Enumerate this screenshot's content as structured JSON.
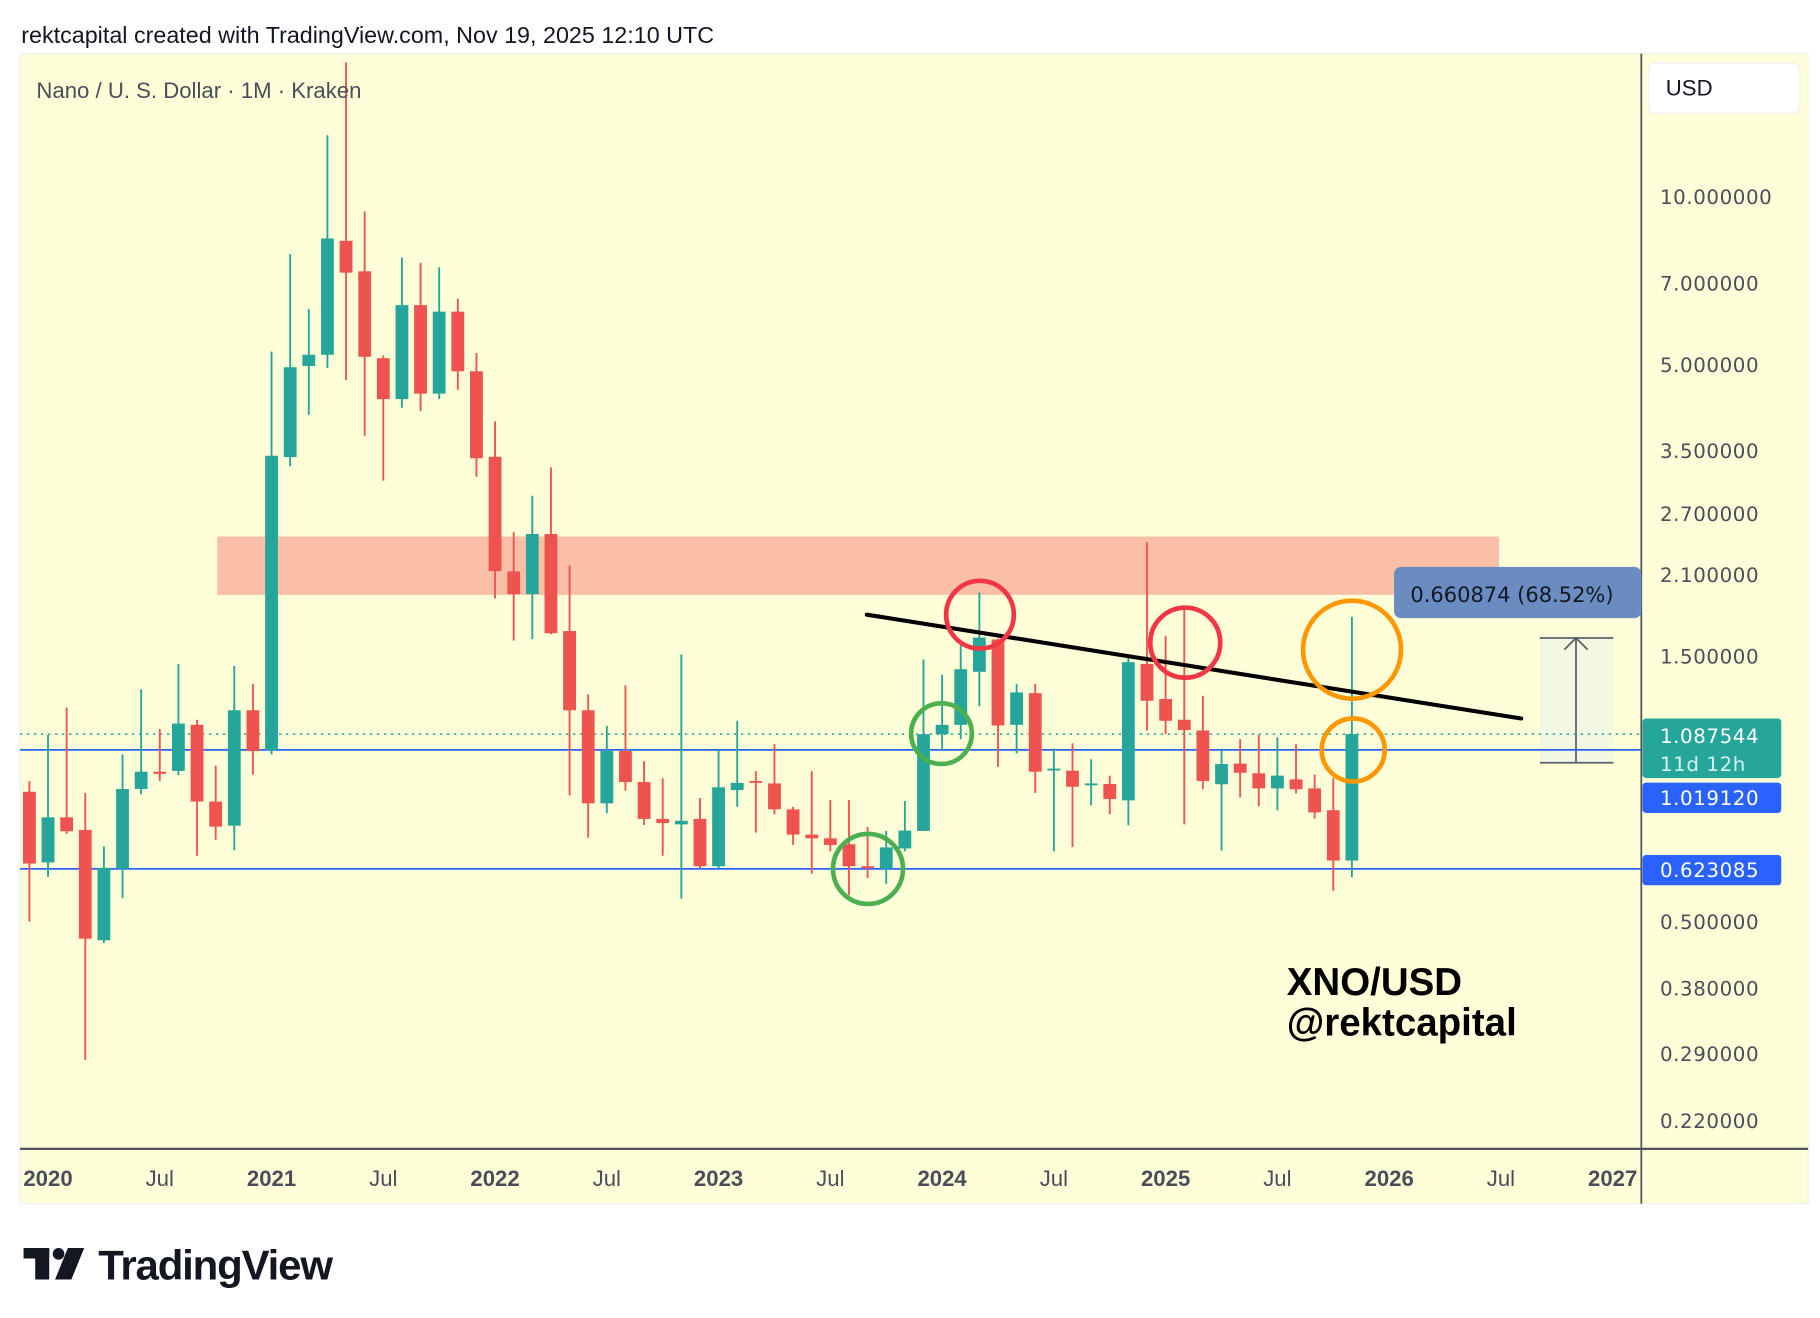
{
  "header": {
    "attribution": "rektcapital created with TradingView.com, Nov 19, 2025 12:10 UTC"
  },
  "chart": {
    "symbol_title": "Nano / U. S. Dollar · 1M · Kraken",
    "currency_button": "USD",
    "watermark_line1": "XNO/USD",
    "watermark_line2": "@rektcapital",
    "current_price_label": "1.087544",
    "countdown_label": "11d 12h",
    "level_high_label": "1.019120",
    "level_low_label": "0.623085",
    "measure_label": "0.660874 (68.52%)",
    "colors": {
      "up": "#26a69a",
      "down": "#ef5350",
      "level": "#2962ff",
      "background": "#fefed8",
      "zone": "#fbbfa8",
      "circle_red": "#f23645",
      "circle_green": "#4caf50",
      "circle_orange": "#ff9800"
    }
  },
  "footer": {
    "brand": "TradingView"
  },
  "chart_data": {
    "type": "candlestick",
    "title": "Nano / U. S. Dollar · 1M · Kraken",
    "timeframe": "1M",
    "scale": "log",
    "first_month": "2019-12",
    "ylim": [
      0.2,
      14
    ],
    "levels": [
      1.01912,
      0.623085
    ],
    "current_price": 1.087544,
    "resistance_zone": [
      1.93,
      2.46
    ],
    "measure": {
      "from": 0.9645,
      "to": 1.6254,
      "change": 0.660874,
      "percent": 68.52
    },
    "y_ticks": [
      {
        "value": 10,
        "label": "10.000000"
      },
      {
        "value": 7,
        "label": "7.000000"
      },
      {
        "value": 5,
        "label": "5.000000"
      },
      {
        "value": 3.5,
        "label": "3.500000"
      },
      {
        "value": 2.7,
        "label": "2.700000"
      },
      {
        "value": 2.1,
        "label": "2.100000"
      },
      {
        "value": 1.5,
        "label": "1.500000"
      },
      {
        "value": 0.5,
        "label": "0.500000"
      },
      {
        "value": 0.38,
        "label": "0.380000"
      },
      {
        "value": 0.29,
        "label": "0.290000"
      },
      {
        "value": 0.22,
        "label": "0.220000"
      }
    ],
    "x_ticks": [
      {
        "date": "2020-01",
        "label": "2020",
        "year": true
      },
      {
        "date": "2020-07",
        "label": "Jul",
        "year": false
      },
      {
        "date": "2021-01",
        "label": "2021",
        "year": true
      },
      {
        "date": "2021-07",
        "label": "Jul",
        "year": false
      },
      {
        "date": "2022-01",
        "label": "2022",
        "year": true
      },
      {
        "date": "2022-07",
        "label": "Jul",
        "year": false
      },
      {
        "date": "2023-01",
        "label": "2023",
        "year": true
      },
      {
        "date": "2023-07",
        "label": "Jul",
        "year": false
      },
      {
        "date": "2024-01",
        "label": "2024",
        "year": true
      },
      {
        "date": "2024-07",
        "label": "Jul",
        "year": false
      },
      {
        "date": "2025-01",
        "label": "2025",
        "year": true
      },
      {
        "date": "2025-07",
        "label": "Jul",
        "year": false
      },
      {
        "date": "2026-01",
        "label": "2026",
        "year": true
      },
      {
        "date": "2026-07",
        "label": "Jul",
        "year": false
      },
      {
        "date": "2027-01",
        "label": "2027",
        "year": true
      }
    ],
    "ohlc_columns": [
      "open",
      "high",
      "low",
      "close"
    ],
    "ohlc": [
      [
        0.857,
        0.896,
        0.501,
        0.637
      ],
      [
        0.64,
        1.084,
        0.603,
        0.771
      ],
      [
        0.771,
        1.213,
        0.72,
        0.728
      ],
      [
        0.732,
        0.853,
        0.283,
        0.467
      ],
      [
        0.464,
        0.684,
        0.459,
        0.626
      ],
      [
        0.623,
        1.0,
        0.552,
        0.867
      ],
      [
        0.867,
        1.309,
        0.848,
        0.931
      ],
      [
        0.931,
        1.111,
        0.896,
        0.923
      ],
      [
        0.934,
        1.453,
        0.918,
        1.136
      ],
      [
        1.13,
        1.154,
        0.658,
        0.823
      ],
      [
        0.823,
        0.954,
        0.703,
        0.742
      ],
      [
        0.745,
        1.441,
        0.673,
        1.2
      ],
      [
        1.2,
        1.339,
        0.92,
        1.014
      ],
      [
        1.018,
        5.285,
        1.0,
        3.435
      ],
      [
        3.416,
        7.9,
        3.287,
        4.952
      ],
      [
        4.977,
        6.295,
        4.067,
        5.213
      ],
      [
        5.213,
        12.91,
        4.937,
        8.43
      ],
      [
        8.35,
        17.45,
        4.7,
        7.32
      ],
      [
        7.36,
        9.43,
        3.73,
        5.17
      ],
      [
        5.14,
        5.2,
        3.1,
        4.34
      ],
      [
        4.34,
        7.79,
        4.19,
        6.4
      ],
      [
        6.4,
        7.62,
        4.13,
        4.44
      ],
      [
        4.44,
        7.48,
        4.34,
        6.23
      ],
      [
        6.23,
        6.57,
        4.51,
        4.87
      ],
      [
        4.87,
        5.25,
        3.15,
        3.4
      ],
      [
        3.42,
        3.96,
        1.904,
        2.133
      ],
      [
        2.13,
        2.504,
        1.6,
        1.939
      ],
      [
        1.939,
        2.911,
        1.61,
        2.486
      ],
      [
        2.486,
        3.274,
        1.643,
        1.65
      ],
      [
        1.665,
        2.184,
        0.844,
        1.2
      ],
      [
        1.2,
        1.281,
        0.709,
        0.817
      ],
      [
        0.817,
        1.125,
        0.784,
        1.014
      ],
      [
        1.014,
        1.33,
        0.861,
        0.892
      ],
      [
        0.892,
        0.972,
        0.747,
        0.766
      ],
      [
        0.766,
        0.906,
        0.658,
        0.753
      ],
      [
        0.749,
        1.512,
        0.551,
        0.76
      ],
      [
        0.766,
        0.835,
        0.624,
        0.63
      ],
      [
        0.63,
        1.019,
        0.624,
        0.873
      ],
      [
        0.863,
        1.149,
        0.805,
        0.889
      ],
      [
        0.896,
        0.933,
        0.724,
        0.891
      ],
      [
        0.887,
        1.043,
        0.781,
        0.797
      ],
      [
        0.797,
        0.805,
        0.688,
        0.718
      ],
      [
        0.718,
        0.933,
        0.611,
        0.707
      ],
      [
        0.707,
        0.828,
        0.67,
        0.688
      ],
      [
        0.69,
        0.828,
        0.559,
        0.63
      ],
      [
        0.63,
        0.741,
        0.6,
        0.625
      ],
      [
        0.624,
        0.729,
        0.586,
        0.681
      ],
      [
        0.678,
        0.825,
        0.67,
        0.73
      ],
      [
        0.729,
        1.48,
        0.729,
        1.087
      ],
      [
        1.087,
        1.39,
        1.018,
        1.13
      ],
      [
        1.13,
        1.569,
        1.065,
        1.422
      ],
      [
        1.407,
        1.952,
        1.22,
        1.62
      ],
      [
        1.608,
        1.615,
        0.95,
        1.127
      ],
      [
        1.13,
        1.338,
        1.004,
        1.292
      ],
      [
        1.288,
        1.338,
        0.853,
        0.931
      ],
      [
        0.937,
        1.024,
        0.67,
        0.943
      ],
      [
        0.935,
        1.047,
        0.682,
        0.875
      ],
      [
        0.883,
        0.98,
        0.81,
        0.887
      ],
      [
        0.885,
        0.916,
        0.781,
        0.832
      ],
      [
        0.827,
        1.512,
        0.746,
        1.464
      ],
      [
        1.453,
        2.403,
        1.104,
        1.248
      ],
      [
        1.257,
        1.633,
        1.088,
        1.149
      ],
      [
        1.154,
        1.846,
        0.749,
        1.106
      ],
      [
        1.104,
        1.274,
        0.866,
        0.896
      ],
      [
        0.884,
        1.024,
        0.672,
        0.961
      ],
      [
        0.963,
        1.065,
        0.837,
        0.927
      ],
      [
        0.925,
        1.084,
        0.807,
        0.869
      ],
      [
        0.869,
        1.073,
        0.794,
        0.916
      ],
      [
        0.902,
        1.043,
        0.851,
        0.866
      ],
      [
        0.869,
        0.92,
        0.767,
        0.787
      ],
      [
        0.794,
        0.906,
        0.569,
        0.645
      ],
      [
        0.645,
        1.765,
        0.602,
        1.087544
      ]
    ]
  }
}
